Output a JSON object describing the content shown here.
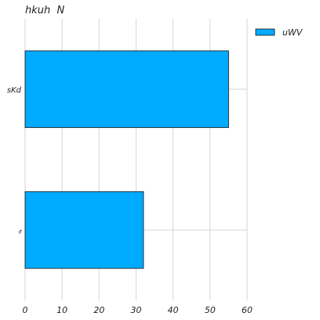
{
  "chart_data": {
    "type": "bar",
    "orientation": "horizontal",
    "title": "hkuh  N",
    "xlabel": "",
    "ylabel": "",
    "categories": [
      "sKd",
      "ᵭ"
    ],
    "series": [
      {
        "name": "uWV",
        "values": [
          55,
          32
        ],
        "color": "#00aaff"
      }
    ],
    "xlim": [
      0,
      60
    ],
    "xticks": [
      0,
      10,
      20,
      30,
      40,
      50,
      60
    ],
    "grid": true,
    "legend": "top-right"
  }
}
